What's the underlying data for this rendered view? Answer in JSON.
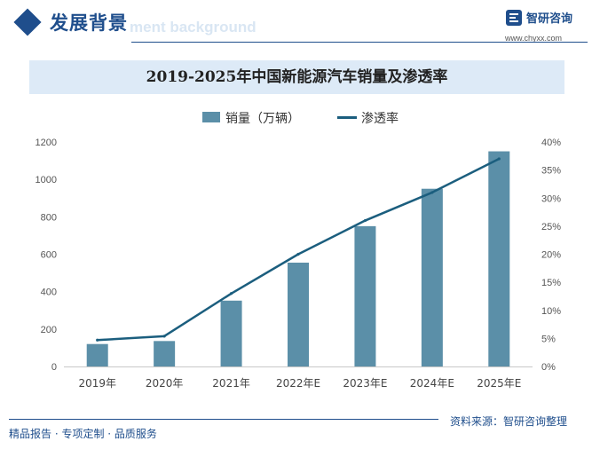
{
  "header": {
    "title": "发展背景",
    "ghost_text": "ment background"
  },
  "logo": {
    "name": "智研咨询",
    "url": "www.chyxx.com",
    "icon": "zhiyan-logo-icon"
  },
  "footer": {
    "tagline": "精品报告 · 专项定制 · 品质服务",
    "source": "资料来源：智研咨询整理"
  },
  "colors": {
    "brand": "#1f4e8c",
    "bar": "#5b8fa8",
    "line": "#1b5e7e",
    "title_bg": "#ddeaf7"
  },
  "chart_data": {
    "type": "bar",
    "title": "2019-2025年中国新能源汽车销量及渗透率",
    "categories": [
      "2019年",
      "2020年",
      "2021年",
      "2022年E",
      "2023年E",
      "2024年E",
      "2025年E"
    ],
    "series": [
      {
        "name": "销量（万辆）",
        "type": "bar",
        "axis": "left",
        "values": [
          120,
          136,
          352,
          555,
          750,
          950,
          1150
        ]
      },
      {
        "name": "渗透率",
        "type": "line",
        "axis": "right",
        "values": [
          4.7,
          5.4,
          13.0,
          20.0,
          26.0,
          31.0,
          37.0
        ]
      }
    ],
    "y_left": {
      "min": 0,
      "max": 1200,
      "ticks": [
        0,
        200,
        400,
        600,
        800,
        1000,
        1200
      ]
    },
    "y_right": {
      "min": 0,
      "max": 40,
      "ticks": [
        "0%",
        "5%",
        "10%",
        "15%",
        "20%",
        "25%",
        "30%",
        "35%",
        "40%"
      ]
    },
    "legend_position": "top",
    "grid": false
  }
}
